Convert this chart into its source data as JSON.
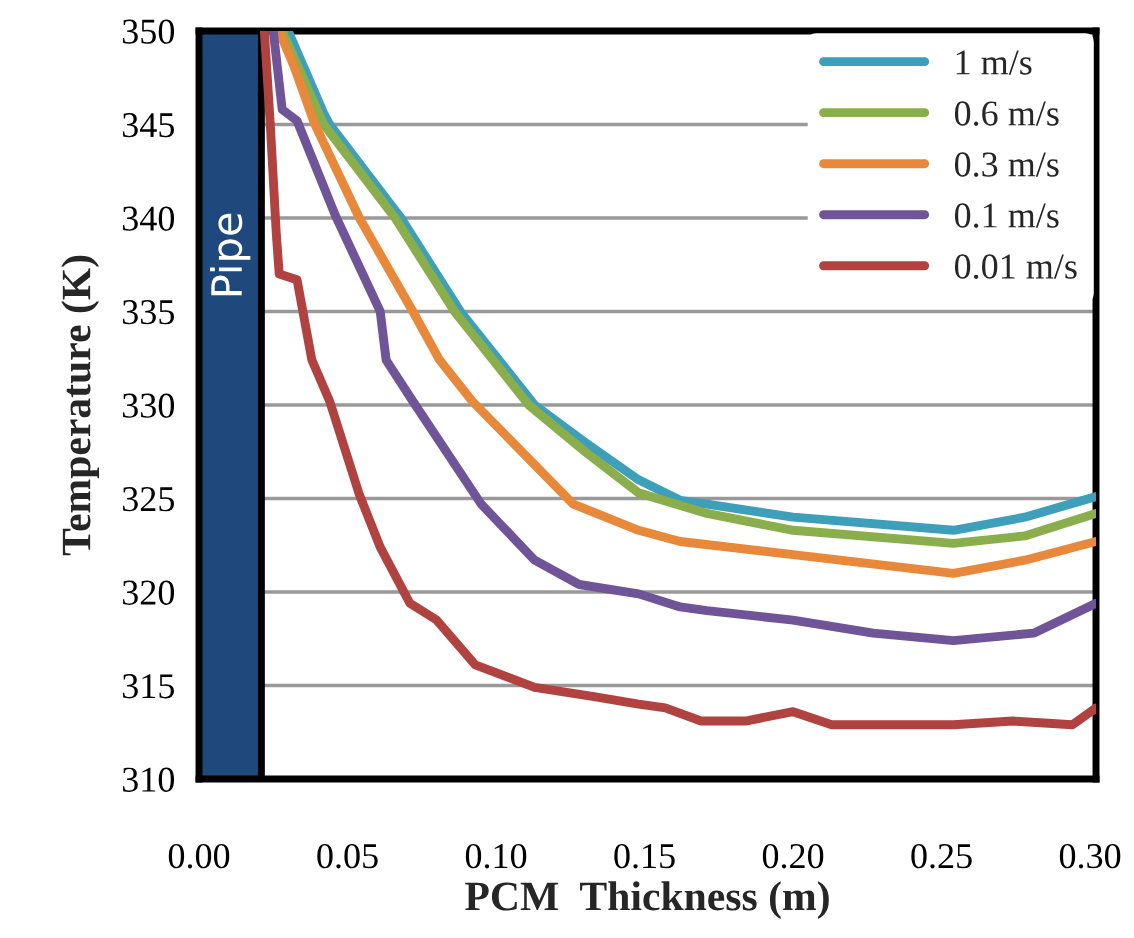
{
  "chart_data": {
    "type": "line",
    "xlabel": "PCM  Thickness (m)",
    "ylabel": "Temperature (K)",
    "xlim": [
      0,
      0.302
    ],
    "xticks": [
      {
        "value": 0,
        "label": "0.00"
      },
      {
        "value": 0.05,
        "label": "0.05"
      },
      {
        "value": 0.1,
        "label": "0.10"
      },
      {
        "value": 0.15,
        "label": "0.15"
      },
      {
        "value": 0.2,
        "label": "0.20"
      },
      {
        "value": 0.25,
        "label": "0.25"
      },
      {
        "value": 0.3,
        "label": "0.30"
      }
    ],
    "ylim": [
      310,
      350
    ],
    "yticks": [
      310,
      315,
      320,
      325,
      330,
      335,
      340,
      345,
      350
    ],
    "grid": "y",
    "legend": "top right",
    "line_style": "solid",
    "marker": "none",
    "ref_lines": [
      {
        "axis": "x",
        "value": 0.021,
        "color": "#000000"
      }
    ],
    "bands": [
      {
        "axis": "x",
        "from": 0,
        "to": 0.021,
        "label": "Pipe",
        "color": "#1f497d"
      }
    ],
    "series": [
      {
        "name": "1 m/s",
        "color": "#3d9fb9",
        "x": [
          0.03,
          0.042,
          0.044,
          0.068,
          0.088,
          0.113,
          0.13,
          0.148,
          0.162,
          0.171,
          0.2,
          0.254,
          0.278,
          0.302
        ],
        "values": [
          350,
          345.6,
          345,
          340,
          335,
          330,
          328,
          326.0,
          324.9,
          324.7,
          324.0,
          323.3,
          324.0,
          325.1
        ]
      },
      {
        "name": "0.6 m/s",
        "color": "#8aae4b",
        "x": [
          0.028,
          0.042,
          0.066,
          0.086,
          0.111,
          0.13,
          0.148,
          0.171,
          0.2,
          0.254,
          0.278,
          0.302
        ],
        "values": [
          350,
          345,
          340,
          335,
          330,
          327.5,
          325.3,
          324.2,
          323.3,
          322.6,
          323.0,
          324.2
        ]
      },
      {
        "name": "0.3 m/s",
        "color": "#e8883a",
        "x": [
          0.027,
          0.032,
          0.039,
          0.054,
          0.072,
          0.081,
          0.092,
          0.126,
          0.148,
          0.162,
          0.2,
          0.254,
          0.278,
          0.302
        ],
        "values": [
          350,
          348.1,
          345,
          340,
          335,
          332.4,
          330.2,
          324.7,
          323.3,
          322.7,
          322.0,
          321.0,
          321.7,
          322.7
        ]
      },
      {
        "name": "0.1 m/s",
        "color": "#6f5597",
        "x": [
          0.025,
          0.028,
          0.033,
          0.046,
          0.061,
          0.063,
          0.072,
          0.095,
          0.113,
          0.128,
          0.148,
          0.162,
          0.171,
          0.2,
          0.227,
          0.254,
          0.281,
          0.302
        ],
        "values": [
          350,
          345.8,
          345.2,
          340.1,
          335,
          332.4,
          330.2,
          324.7,
          321.7,
          320.4,
          319.9,
          319.2,
          319.0,
          318.5,
          317.8,
          317.4,
          317.8,
          319.4
        ]
      },
      {
        "name": "0.01 m/s",
        "color": "#b0433f",
        "x": [
          0.022,
          0.024,
          0.026,
          0.027,
          0.033,
          0.038,
          0.044,
          0.054,
          0.061,
          0.071,
          0.08,
          0.093,
          0.113,
          0.133,
          0.148,
          0.157,
          0.169,
          0.184,
          0.2,
          0.213,
          0.254,
          0.274,
          0.294,
          0.302
        ],
        "values": [
          350,
          345,
          339.2,
          337.0,
          336.7,
          332.4,
          330.2,
          325.2,
          322.4,
          319.4,
          318.5,
          316.1,
          314.9,
          314.4,
          314.0,
          313.8,
          313.1,
          313.1,
          313.6,
          312.9,
          312.9,
          313.1,
          312.9,
          313.8
        ]
      }
    ]
  }
}
